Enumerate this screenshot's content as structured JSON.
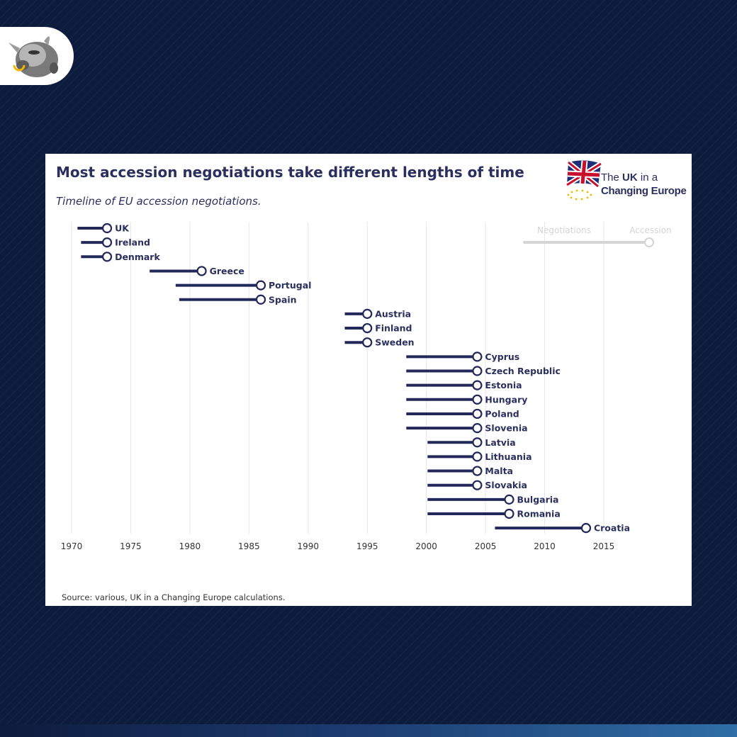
{
  "header": {
    "title": "Most accession negotiations take different lengths of time",
    "subtitle": "Timeline of EU accession negotiations."
  },
  "brand": {
    "line1_pre": "The ",
    "line1_bold": "UK",
    "line1_post": " in a",
    "line2": "Changing Europe"
  },
  "footer": {
    "source": "Source: various, UK in a Changing Europe calculations."
  },
  "colors": {
    "page_background": "#0d1b3d",
    "series": "#23285a",
    "grid": "#e6e6e6",
    "legend": "#d4d4d4",
    "text": "#2b2f5e"
  },
  "chart_data": {
    "type": "timeline",
    "title": "Most accession negotiations take different lengths of time",
    "subtitle": "Timeline of EU accession negotiations.",
    "xlabel": "",
    "ylabel": "",
    "xlim": [
      1970,
      2015
    ],
    "ticks": [
      1970,
      1975,
      1980,
      1985,
      1990,
      1995,
      2000,
      2005,
      2010,
      2015
    ],
    "grid": true,
    "legend": {
      "position": "top-right",
      "negotiations_label": "Negotiations",
      "accession_label": "Accession"
    },
    "countries": [
      {
        "name": "UK",
        "start": 1970.5,
        "accession": 1973
      },
      {
        "name": "Ireland",
        "start": 1970.8,
        "accession": 1973
      },
      {
        "name": "Denmark",
        "start": 1970.8,
        "accession": 1973
      },
      {
        "name": "Greece",
        "start": 1976.6,
        "accession": 1981
      },
      {
        "name": "Portugal",
        "start": 1978.8,
        "accession": 1986
      },
      {
        "name": "Spain",
        "start": 1979.1,
        "accession": 1986
      },
      {
        "name": "Austria",
        "start": 1993.1,
        "accession": 1995
      },
      {
        "name": "Finland",
        "start": 1993.1,
        "accession": 1995
      },
      {
        "name": "Sweden",
        "start": 1993.1,
        "accession": 1995
      },
      {
        "name": "Cyprus",
        "start": 1998.3,
        "accession": 2004.3
      },
      {
        "name": "Czech Republic",
        "start": 1998.3,
        "accession": 2004.3
      },
      {
        "name": "Estonia",
        "start": 1998.3,
        "accession": 2004.3
      },
      {
        "name": "Hungary",
        "start": 1998.3,
        "accession": 2004.3
      },
      {
        "name": "Poland",
        "start": 1998.3,
        "accession": 2004.3
      },
      {
        "name": "Slovenia",
        "start": 1998.3,
        "accession": 2004.3
      },
      {
        "name": "Latvia",
        "start": 2000.1,
        "accession": 2004.3
      },
      {
        "name": "Lithuania",
        "start": 2000.1,
        "accession": 2004.3
      },
      {
        "name": "Malta",
        "start": 2000.1,
        "accession": 2004.3
      },
      {
        "name": "Slovakia",
        "start": 2000.1,
        "accession": 2004.3
      },
      {
        "name": "Bulgaria",
        "start": 2000.1,
        "accession": 2007
      },
      {
        "name": "Romania",
        "start": 2000.1,
        "accession": 2007
      },
      {
        "name": "Croatia",
        "start": 2005.8,
        "accession": 2013.5
      }
    ]
  }
}
